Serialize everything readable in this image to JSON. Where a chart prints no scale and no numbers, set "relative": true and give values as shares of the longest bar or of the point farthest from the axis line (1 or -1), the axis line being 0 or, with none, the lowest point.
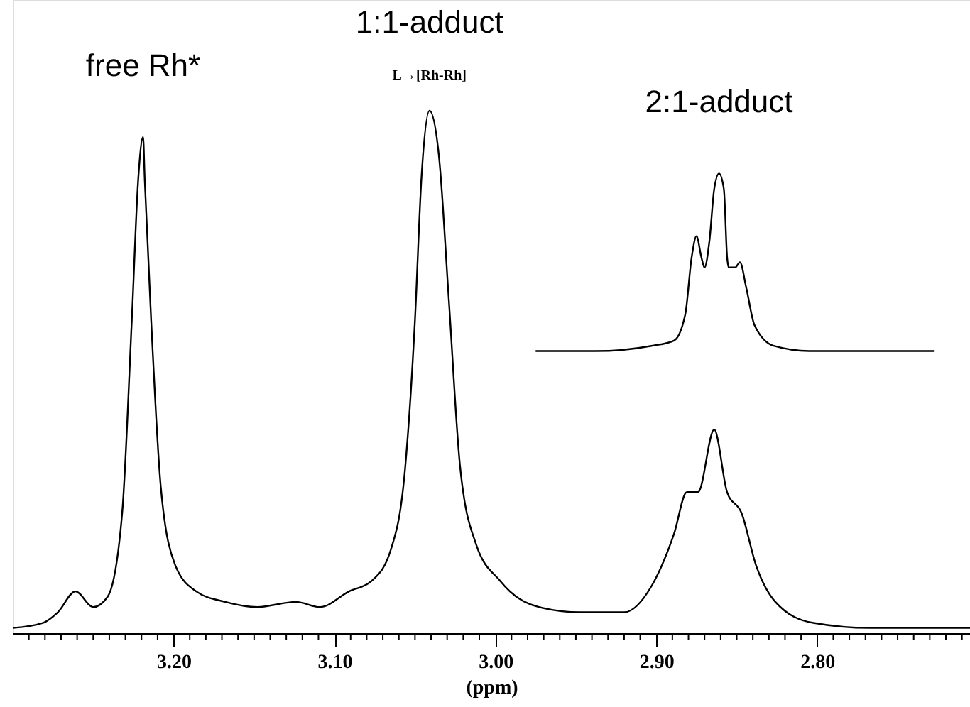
{
  "chart_data": {
    "type": "line",
    "relative": true,
    "xlabel": "(ppm)",
    "xlim": [
      3.3,
      2.705
    ],
    "xticks": [
      {
        "value": 3.29,
        "label": null
      },
      {
        "value": 3.28,
        "label": null
      },
      {
        "value": 3.27,
        "label": null
      },
      {
        "value": 3.26,
        "label": null
      },
      {
        "value": 3.25,
        "label": null
      },
      {
        "value": 3.24,
        "label": null
      },
      {
        "value": 3.23,
        "label": null
      },
      {
        "value": 3.22,
        "label": null
      },
      {
        "value": 3.21,
        "label": null
      },
      {
        "value": 3.2,
        "label": "3.20"
      },
      {
        "value": 3.19,
        "label": null
      },
      {
        "value": 3.18,
        "label": null
      },
      {
        "value": 3.17,
        "label": null
      },
      {
        "value": 3.16,
        "label": null
      },
      {
        "value": 3.15,
        "label": null
      },
      {
        "value": 3.14,
        "label": null
      },
      {
        "value": 3.13,
        "label": null
      },
      {
        "value": 3.12,
        "label": null
      },
      {
        "value": 3.11,
        "label": null
      },
      {
        "value": 3.1,
        "label": "3.10"
      },
      {
        "value": 3.09,
        "label": null
      },
      {
        "value": 3.08,
        "label": null
      },
      {
        "value": 3.07,
        "label": null
      },
      {
        "value": 3.06,
        "label": null
      },
      {
        "value": 3.05,
        "label": null
      },
      {
        "value": 3.04,
        "label": null
      },
      {
        "value": 3.03,
        "label": null
      },
      {
        "value": 3.02,
        "label": null
      },
      {
        "value": 3.01,
        "label": null
      },
      {
        "value": 3.0,
        "label": "3.00"
      },
      {
        "value": 2.99,
        "label": null
      },
      {
        "value": 2.98,
        "label": null
      },
      {
        "value": 2.97,
        "label": null
      },
      {
        "value": 2.96,
        "label": null
      },
      {
        "value": 2.95,
        "label": null
      },
      {
        "value": 2.94,
        "label": null
      },
      {
        "value": 2.93,
        "label": null
      },
      {
        "value": 2.92,
        "label": null
      },
      {
        "value": 2.91,
        "label": null
      },
      {
        "value": 2.9,
        "label": "2.90"
      },
      {
        "value": 2.89,
        "label": null
      },
      {
        "value": 2.88,
        "label": null
      },
      {
        "value": 2.87,
        "label": null
      },
      {
        "value": 2.86,
        "label": null
      },
      {
        "value": 2.85,
        "label": null
      },
      {
        "value": 2.84,
        "label": null
      },
      {
        "value": 2.83,
        "label": null
      },
      {
        "value": 2.82,
        "label": null
      },
      {
        "value": 2.81,
        "label": null
      },
      {
        "value": 2.8,
        "label": "2.80"
      },
      {
        "value": 2.79,
        "label": null
      },
      {
        "value": 2.78,
        "label": null
      },
      {
        "value": 2.77,
        "label": null
      },
      {
        "value": 2.76,
        "label": null
      },
      {
        "value": 2.75,
        "label": null
      },
      {
        "value": 2.74,
        "label": null
      },
      {
        "value": 2.73,
        "label": null
      },
      {
        "value": 2.72,
        "label": null
      },
      {
        "value": 2.71,
        "label": null
      }
    ],
    "grid": false,
    "marker": "none",
    "line_style": "solid",
    "series": [
      {
        "color": "#000000",
        "x": [
          3.3,
          3.281,
          3.272,
          3.261,
          3.25,
          3.241,
          3.232,
          3.226,
          3.222,
          3.219,
          3.218,
          3.214,
          3.208,
          3.199,
          3.186,
          3.168,
          3.148,
          3.124,
          3.109,
          3.091,
          3.077,
          3.065,
          3.056,
          3.05,
          3.046,
          3.041,
          3.035,
          3.029,
          3.022,
          3.012,
          2.997,
          2.991,
          2.973,
          2.947,
          2.92,
          2.903,
          2.889,
          2.881,
          2.874,
          2.864,
          2.856,
          2.847,
          2.838,
          2.826,
          2.803,
          2.767,
          2.705
        ],
        "values": [
          0.01,
          0.02,
          0.04,
          0.08,
          0.05,
          0.07,
          0.23,
          0.6,
          0.87,
          0.95,
          0.87,
          0.6,
          0.28,
          0.13,
          0.08,
          0.06,
          0.05,
          0.06,
          0.05,
          0.08,
          0.1,
          0.16,
          0.32,
          0.6,
          0.87,
          1.0,
          0.91,
          0.64,
          0.32,
          0.17,
          0.1,
          0.08,
          0.05,
          0.04,
          0.04,
          0.09,
          0.19,
          0.27,
          0.27,
          0.39,
          0.27,
          0.23,
          0.13,
          0.06,
          0.02,
          0.01,
          0.01
        ]
      },
      {
        "color": "#000000",
        "x": [
          2.975,
          2.938,
          2.903,
          2.889,
          2.882,
          2.878,
          2.875,
          2.872,
          2.87,
          2.867,
          2.864,
          2.861,
          2.858,
          2.856,
          2.855,
          2.851,
          2.848,
          2.844,
          2.839,
          2.827,
          2.805,
          2.77,
          2.727
        ],
        "values": [
          0.54,
          0.54,
          0.55,
          0.56,
          0.61,
          0.72,
          0.76,
          0.72,
          0.7,
          0.75,
          0.85,
          0.88,
          0.85,
          0.72,
          0.7,
          0.7,
          0.71,
          0.66,
          0.59,
          0.55,
          0.54,
          0.54,
          0.54
        ]
      }
    ],
    "annotations": [
      {
        "text": "free Rh*",
        "x": 3.219,
        "y": 0.95
      },
      {
        "text": "1:1-adduct",
        "x": 3.041,
        "y": 1.0
      },
      {
        "text": "L→[Rh-Rh]",
        "x": 3.041,
        "y": 1.0
      },
      {
        "text": "2:1-adduct",
        "x": 2.861,
        "y": 0.88
      }
    ]
  }
}
